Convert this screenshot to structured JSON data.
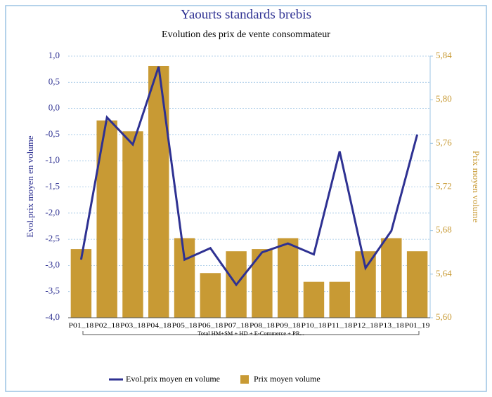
{
  "chart_data": {
    "type": "bar_line",
    "title": "Yaourts standards brebis",
    "subtitle": "Evolution des prix de vente consommateur",
    "y_label": "Evol.prix moyen en volume",
    "y2_label": "Prix moyen volume",
    "group_label": "Total HM+SM + HD + E-Commerce + PR...",
    "categories": [
      "P01_18",
      "P02_18",
      "P03_18",
      "P04_18",
      "P05_18",
      "P06_18",
      "P07_18",
      "P08_18",
      "P09_18",
      "P10_18",
      "P11_18",
      "P12_18",
      "P13_18",
      "P01_19"
    ],
    "series": [
      {
        "name": "Evol.prix moyen en volume",
        "type": "line",
        "color": "#2e3192",
        "axis": "y",
        "values": [
          -2.89,
          -0.17,
          -0.69,
          0.8,
          -2.89,
          -2.67,
          -3.37,
          -2.75,
          -2.58,
          -2.79,
          -0.82,
          -3.05,
          -2.34,
          -0.5
        ]
      },
      {
        "name": "Prix moyen volume",
        "type": "bar",
        "color": "#c89a34",
        "axis": "y2",
        "values": [
          5.663,
          5.781,
          5.771,
          5.831,
          5.673,
          5.641,
          5.661,
          5.663,
          5.673,
          5.633,
          5.633,
          5.661,
          5.673,
          5.661
        ]
      }
    ],
    "ylim": [
      -4,
      1
    ],
    "yticks": [
      {
        "value": -4,
        "label": "-4,0"
      },
      {
        "value": -3.5,
        "label": "-3,5"
      },
      {
        "value": -3,
        "label": "-3,0"
      },
      {
        "value": -2.5,
        "label": "-2,5"
      },
      {
        "value": -2,
        "label": "-2,0"
      },
      {
        "value": -1.5,
        "label": "-1,5"
      },
      {
        "value": -1,
        "label": "-1,0"
      },
      {
        "value": -0.5,
        "label": "-0,5"
      },
      {
        "value": 0,
        "label": "0,0"
      },
      {
        "value": 0.5,
        "label": "0,5"
      },
      {
        "value": 1,
        "label": "1,0"
      }
    ],
    "y2lim": [
      5.6,
      5.84
    ],
    "y2ticks": [
      {
        "value": 5.6,
        "label": "5,60"
      },
      {
        "value": 5.64,
        "label": "5,64"
      },
      {
        "value": 5.68,
        "label": "5,68"
      },
      {
        "value": 5.72,
        "label": "5,72"
      },
      {
        "value": 5.76,
        "label": "5,76"
      },
      {
        "value": 5.8,
        "label": "5,80"
      },
      {
        "value": 5.84,
        "label": "5,84"
      }
    ],
    "grid": true,
    "legend": "bottom"
  }
}
